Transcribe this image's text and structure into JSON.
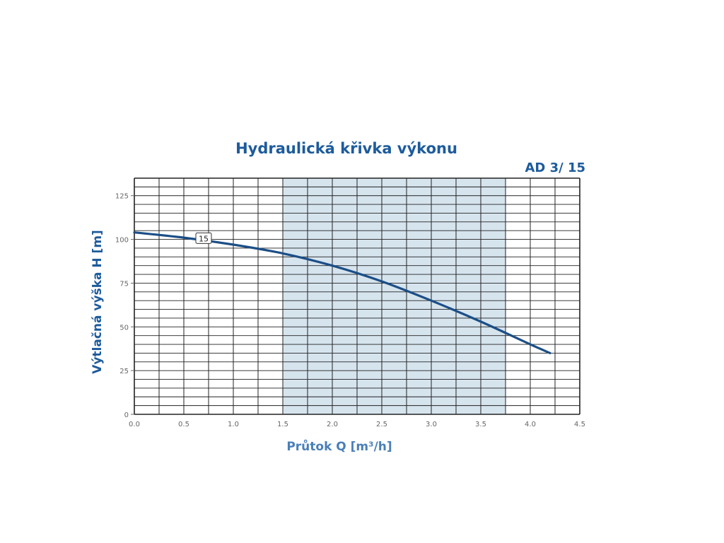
{
  "chart_data": {
    "type": "line",
    "title": "Hydraulická křivka výkonu",
    "model_label": "AD 3/ 15",
    "xlabel": "Průtok Q [m³/h]",
    "ylabel": "Výtlačná výška H [m]",
    "xlim": [
      0,
      4.5
    ],
    "ylim": [
      0,
      135
    ],
    "x_ticks": [
      "0.0",
      "0.5",
      "1.0",
      "1.5",
      "2.0",
      "2.5",
      "3.0",
      "3.5",
      "4.0",
      "4.5"
    ],
    "y_ticks": [
      "0",
      "25",
      "50",
      "75",
      "100",
      "125"
    ],
    "grid": true,
    "highlight_range": [
      1.5,
      3.75
    ],
    "series": [
      {
        "name": "15",
        "x": [
          0,
          0.5,
          1.0,
          1.5,
          2.0,
          2.5,
          3.0,
          3.5,
          4.0,
          4.2
        ],
        "y": [
          104,
          101,
          97,
          92,
          85,
          76,
          65,
          53,
          40,
          35
        ]
      }
    ],
    "colors": {
      "curve": "#1b4e86",
      "highlight": "#d6e4ee",
      "grid": "#222222",
      "text": "#1d5b9c"
    }
  }
}
